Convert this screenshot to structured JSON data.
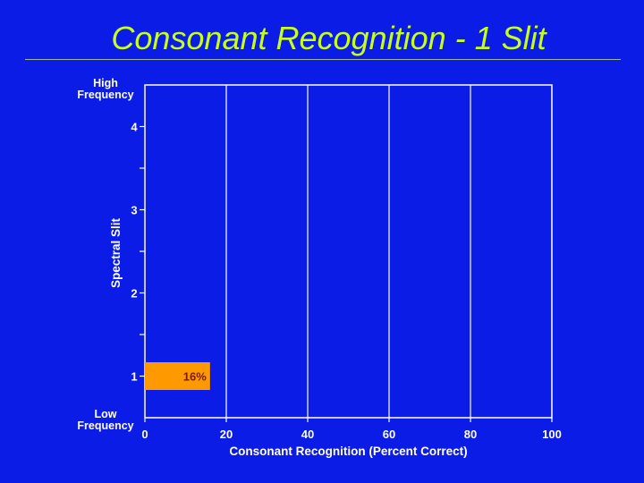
{
  "slide": {
    "title": "Consonant Recognition - 1 Slit"
  },
  "chart_data": {
    "type": "bar",
    "orientation": "horizontal",
    "categories": [
      "1",
      "2",
      "3",
      "4"
    ],
    "series": [
      {
        "values": [
          16,
          null,
          null,
          null
        ],
        "labels": [
          "16%",
          "",
          "",
          ""
        ]
      }
    ],
    "xlabel": "Consonant Recognition (Percent Correct)",
    "ylabel": "Spectral Slit",
    "xlim": [
      0,
      100
    ],
    "x_ticks": [
      "0",
      "20",
      "40",
      "60",
      "80",
      "100"
    ],
    "y_end_labels": {
      "top": [
        "High",
        "Frequency"
      ],
      "bottom": [
        "Low",
        "Frequency"
      ]
    },
    "grid": "vertical",
    "colors": {
      "bar": "#ff9900",
      "grid": "#ffffff",
      "axis": "#ffffff"
    }
  }
}
